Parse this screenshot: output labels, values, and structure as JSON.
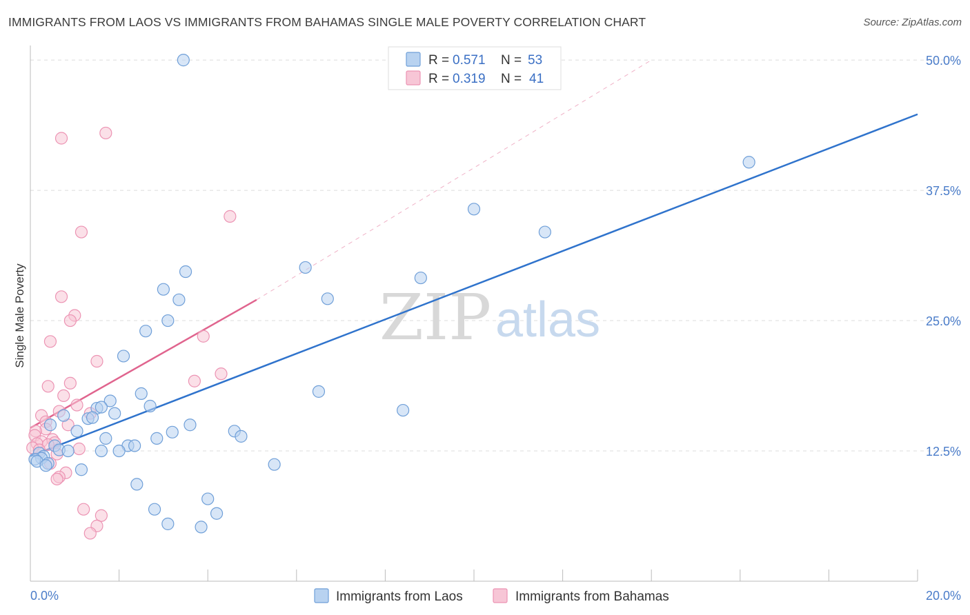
{
  "title": "IMMIGRANTS FROM LAOS VS IMMIGRANTS FROM BAHAMAS SINGLE MALE POVERTY CORRELATION CHART",
  "source": "Source: ZipAtlas.com",
  "watermark": {
    "zip": "ZIP",
    "atlas": "atlas"
  },
  "colors": {
    "laos_fill": "#b8d2f0",
    "laos_stroke": "#6f9fd8",
    "laos_line": "#2f73cc",
    "bahamas_fill": "#f7c6d6",
    "bahamas_stroke": "#ec93b3",
    "bahamas_line": "#e0648e",
    "grid": "#dcdcdc",
    "axis_text": "#4a7cc9"
  },
  "legend": {
    "r_label": "R =",
    "n_label": "N =",
    "laos": {
      "r": "0.571",
      "n": "53"
    },
    "bahamas": {
      "r": "0.319",
      "n": "41"
    }
  },
  "chart_data": {
    "type": "scatter",
    "title": "IMMIGRANTS FROM LAOS VS IMMIGRANTS FROM BAHAMAS SINGLE MALE POVERTY CORRELATION CHART",
    "xlabel": "",
    "ylabel": "Single Male Poverty",
    "xlim": [
      0,
      20
    ],
    "ylim": [
      0,
      51
    ],
    "x_tick_labels": [
      "0.0%",
      "20.0%"
    ],
    "y_ticks": [
      12.5,
      25.0,
      37.5,
      50.0
    ],
    "y_tick_labels": [
      "12.5%",
      "25.0%",
      "37.5%",
      "50.0%"
    ],
    "grid": true,
    "series": [
      {
        "name": "Immigrants from Laos",
        "trend": {
          "x0": 0,
          "y0": 12.0,
          "x1": 20,
          "y1": 44.8,
          "style": "solid"
        },
        "points": [
          {
            "x": 3.45,
            "y": 50.0
          },
          {
            "x": 16.2,
            "y": 40.2
          },
          {
            "x": 10.0,
            "y": 35.7
          },
          {
            "x": 11.6,
            "y": 33.5
          },
          {
            "x": 3.5,
            "y": 29.7
          },
          {
            "x": 6.2,
            "y": 30.1
          },
          {
            "x": 8.8,
            "y": 29.1
          },
          {
            "x": 3.0,
            "y": 28.0
          },
          {
            "x": 3.35,
            "y": 27.0
          },
          {
            "x": 6.7,
            "y": 27.1
          },
          {
            "x": 3.1,
            "y": 25.0
          },
          {
            "x": 2.6,
            "y": 24.0
          },
          {
            "x": 2.1,
            "y": 21.6
          },
          {
            "x": 6.5,
            "y": 18.2
          },
          {
            "x": 2.5,
            "y": 18.0
          },
          {
            "x": 1.8,
            "y": 17.3
          },
          {
            "x": 2.7,
            "y": 16.8
          },
          {
            "x": 8.4,
            "y": 16.4
          },
          {
            "x": 1.5,
            "y": 16.6
          },
          {
            "x": 1.6,
            "y": 16.7
          },
          {
            "x": 1.9,
            "y": 16.1
          },
          {
            "x": 0.75,
            "y": 15.9
          },
          {
            "x": 1.3,
            "y": 15.6
          },
          {
            "x": 1.4,
            "y": 15.7
          },
          {
            "x": 0.45,
            "y": 15.0
          },
          {
            "x": 3.6,
            "y": 15.0
          },
          {
            "x": 1.05,
            "y": 14.4
          },
          {
            "x": 3.2,
            "y": 14.3
          },
          {
            "x": 4.6,
            "y": 14.4
          },
          {
            "x": 4.75,
            "y": 13.9
          },
          {
            "x": 1.7,
            "y": 13.7
          },
          {
            "x": 2.85,
            "y": 13.7
          },
          {
            "x": 2.2,
            "y": 13.0
          },
          {
            "x": 2.35,
            "y": 13.0
          },
          {
            "x": 0.55,
            "y": 13.0
          },
          {
            "x": 0.65,
            "y": 12.6
          },
          {
            "x": 0.85,
            "y": 12.5
          },
          {
            "x": 1.6,
            "y": 12.5
          },
          {
            "x": 2.0,
            "y": 12.5
          },
          {
            "x": 0.2,
            "y": 12.3
          },
          {
            "x": 0.3,
            "y": 12.0
          },
          {
            "x": 0.25,
            "y": 11.8
          },
          {
            "x": 0.1,
            "y": 11.7
          },
          {
            "x": 0.15,
            "y": 11.5
          },
          {
            "x": 0.4,
            "y": 11.3
          },
          {
            "x": 0.35,
            "y": 11.1
          },
          {
            "x": 5.5,
            "y": 11.2
          },
          {
            "x": 1.15,
            "y": 10.7
          },
          {
            "x": 2.4,
            "y": 9.3
          },
          {
            "x": 4.0,
            "y": 7.9
          },
          {
            "x": 2.8,
            "y": 6.9
          },
          {
            "x": 4.2,
            "y": 6.5
          },
          {
            "x": 3.1,
            "y": 5.5
          },
          {
            "x": 3.85,
            "y": 5.2
          }
        ]
      },
      {
        "name": "Immigrants from Bahamas",
        "trend": {
          "x0": 0,
          "y0": 14.7,
          "x1": 5.1,
          "y1": 27.0,
          "style": "solid",
          "extension": {
            "x0": 5.1,
            "y0": 27.0,
            "x1": 14.0,
            "y1": 50.0,
            "style": "dashed"
          }
        },
        "points": [
          {
            "x": 1.7,
            "y": 43.0
          },
          {
            "x": 0.7,
            "y": 42.5
          },
          {
            "x": 4.5,
            "y": 35.0
          },
          {
            "x": 1.15,
            "y": 33.5
          },
          {
            "x": 0.7,
            "y": 27.3
          },
          {
            "x": 1.0,
            "y": 25.5
          },
          {
            "x": 0.9,
            "y": 25.0
          },
          {
            "x": 3.9,
            "y": 23.5
          },
          {
            "x": 0.45,
            "y": 23.0
          },
          {
            "x": 1.5,
            "y": 21.1
          },
          {
            "x": 4.3,
            "y": 19.9
          },
          {
            "x": 3.7,
            "y": 19.2
          },
          {
            "x": 0.9,
            "y": 19.0
          },
          {
            "x": 0.4,
            "y": 18.7
          },
          {
            "x": 0.75,
            "y": 17.8
          },
          {
            "x": 1.05,
            "y": 16.9
          },
          {
            "x": 0.65,
            "y": 16.3
          },
          {
            "x": 1.35,
            "y": 16.1
          },
          {
            "x": 0.25,
            "y": 15.9
          },
          {
            "x": 0.35,
            "y": 15.3
          },
          {
            "x": 0.85,
            "y": 15.0
          },
          {
            "x": 0.35,
            "y": 14.6
          },
          {
            "x": 0.12,
            "y": 14.4
          },
          {
            "x": 0.1,
            "y": 14.0
          },
          {
            "x": 0.5,
            "y": 13.6
          },
          {
            "x": 0.55,
            "y": 13.3
          },
          {
            "x": 0.25,
            "y": 13.4
          },
          {
            "x": 0.15,
            "y": 13.2
          },
          {
            "x": 0.4,
            "y": 13.1
          },
          {
            "x": 0.05,
            "y": 12.8
          },
          {
            "x": 1.1,
            "y": 12.7
          },
          {
            "x": 0.2,
            "y": 12.6
          },
          {
            "x": 0.6,
            "y": 12.2
          },
          {
            "x": 0.45,
            "y": 11.3
          },
          {
            "x": 0.8,
            "y": 10.4
          },
          {
            "x": 0.65,
            "y": 10.0
          },
          {
            "x": 0.6,
            "y": 9.8
          },
          {
            "x": 1.2,
            "y": 6.9
          },
          {
            "x": 1.6,
            "y": 6.3
          },
          {
            "x": 1.5,
            "y": 5.3
          },
          {
            "x": 1.35,
            "y": 4.6
          }
        ]
      }
    ],
    "bottom_legend": [
      "Immigrants from Laos",
      "Immigrants from Bahamas"
    ]
  }
}
